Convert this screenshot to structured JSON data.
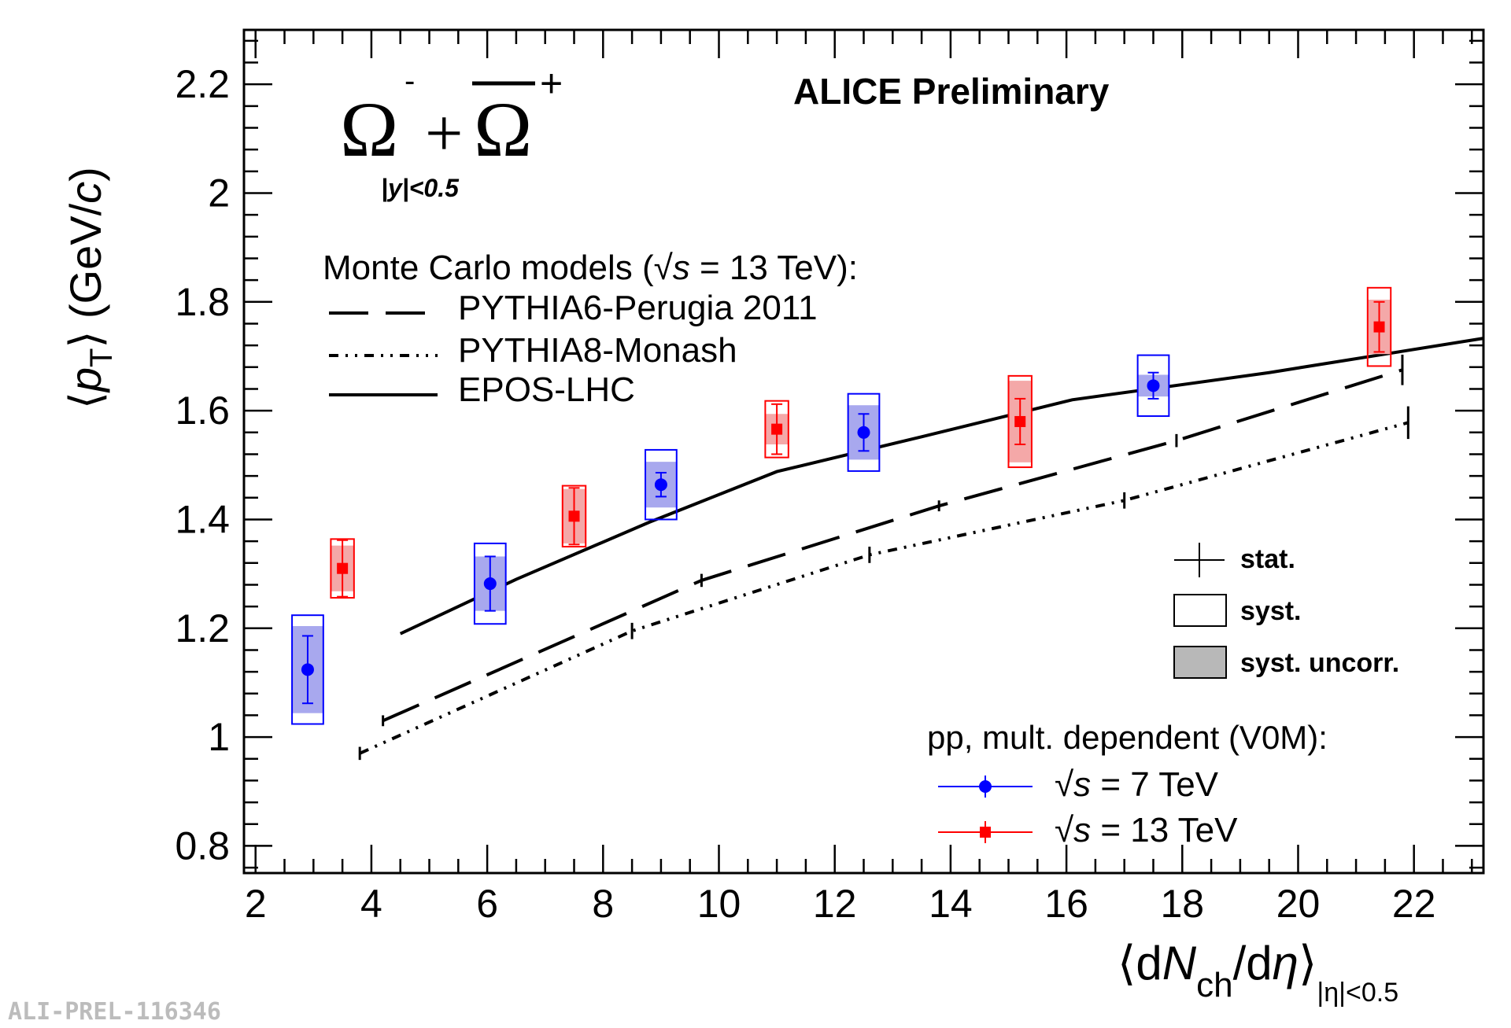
{
  "chart_data": {
    "type": "scatter",
    "experiment_label": "ALICE Preliminary",
    "particle_label": {
      "main": "Ω⁻+Ω̄⁺",
      "minus_sign": "-",
      "plus_sign": "+",
      "omega": "Ω",
      "plus": "+",
      "rapidity": "|y|<0.5"
    },
    "xlabel": {
      "angle_open": "⟨",
      "d1": "d",
      "N": "N",
      "ch": "ch",
      "slash": "/d",
      "eta": "η",
      "angle_close": "⟩",
      "subscript": "|η|<0.5"
    },
    "ylabel": {
      "angle_open": "⟨",
      "p": "p",
      "T": "T",
      "angle_close": "⟩",
      "unit_open": " (GeV/",
      "c": "c",
      "unit_close": ")"
    },
    "xlim": [
      1.8,
      23.2
    ],
    "ylim": [
      0.75,
      2.3
    ],
    "x_ticks": [
      "2",
      "4",
      "6",
      "8",
      "10",
      "12",
      "14",
      "16",
      "18",
      "20",
      "22"
    ],
    "y_ticks": [
      "0.8",
      "1",
      "1.2",
      "1.4",
      "1.6",
      "1.8",
      "2",
      "2.2"
    ],
    "mc_legend": {
      "title_prefix": "Monte Carlo models (",
      "sqrt": "√",
      "s": "s",
      "title_suffix": " = 13 TeV):",
      "entries": [
        "PYTHIA6-Perugia 2011",
        "PYTHIA8-Monash",
        "EPOS-LHC"
      ]
    },
    "unc_legend": [
      "stat.",
      "syst.",
      "syst. uncorr."
    ],
    "data_legend": {
      "title": "pp, mult. dependent (V0M):",
      "entries": [
        {
          "sqrt": "√",
          "s": "s",
          "suffix": " = 7 TeV"
        },
        {
          "sqrt": "√",
          "s": "s",
          "suffix": " = 13 TeV"
        }
      ]
    },
    "colors": {
      "pp7": "#0000ff",
      "pp7_fill": "#a8a8ee",
      "pp13": "#ff0000",
      "pp13_fill": "#f4a8a8",
      "model": "#000000",
      "legend_fill": "#b8b8b8"
    },
    "series": [
      {
        "name": "pp 7 TeV",
        "marker": "circle",
        "points": [
          {
            "x": 2.9,
            "y": 1.124,
            "stat": 0.062,
            "syst": 0.1,
            "uncorr": 0.08
          },
          {
            "x": 6.05,
            "y": 1.282,
            "stat": 0.05,
            "syst": 0.074,
            "uncorr": 0.05
          },
          {
            "x": 9.0,
            "y": 1.464,
            "stat": 0.022,
            "syst": 0.064,
            "uncorr": 0.042
          },
          {
            "x": 12.5,
            "y": 1.56,
            "stat": 0.034,
            "syst": 0.071,
            "uncorr": 0.05
          },
          {
            "x": 17.5,
            "y": 1.646,
            "stat": 0.024,
            "syst": 0.056,
            "uncorr": 0.02
          }
        ]
      },
      {
        "name": "pp 13 TeV",
        "marker": "square",
        "points": [
          {
            "x": 3.5,
            "y": 1.31,
            "stat": 0.052,
            "syst": 0.054,
            "uncorr": 0.042
          },
          {
            "x": 7.5,
            "y": 1.406,
            "stat": 0.052,
            "syst": 0.056,
            "uncorr": 0.05
          },
          {
            "x": 11.0,
            "y": 1.566,
            "stat": 0.046,
            "syst": 0.052,
            "uncorr": 0.028
          },
          {
            "x": 15.2,
            "y": 1.58,
            "stat": 0.042,
            "syst": 0.084,
            "uncorr": 0.075
          },
          {
            "x": 21.4,
            "y": 1.754,
            "stat": 0.046,
            "syst": 0.072,
            "uncorr": 0.05
          }
        ]
      }
    ],
    "models": [
      {
        "name": "PYTHIA6-Perugia 2011",
        "style": "dash",
        "x": [
          4.2,
          9.7,
          13.8,
          17.9,
          21.8
        ],
        "y": [
          1.03,
          1.288,
          1.425,
          1.545,
          1.675
        ],
        "stat": [
          0.01,
          0.012,
          0.01,
          0.012,
          0.028
        ]
      },
      {
        "name": "PYTHIA8-Monash",
        "style": "dashdot",
        "x": [
          3.8,
          8.5,
          12.6,
          17.0,
          21.9
        ],
        "y": [
          0.97,
          1.195,
          1.335,
          1.435,
          1.578
        ],
        "stat": [
          0.012,
          0.015,
          0.015,
          0.015,
          0.03
        ]
      },
      {
        "name": "EPOS-LHC",
        "style": "solid",
        "x": [
          4.5,
          6.5,
          8.8,
          11.0,
          13.5,
          16.1,
          19.5,
          23.2
        ],
        "y": [
          1.19,
          1.29,
          1.395,
          1.488,
          1.552,
          1.62,
          1.67,
          1.733
        ]
      }
    ]
  },
  "footer": {
    "id": "ALI-PREL-116346"
  }
}
